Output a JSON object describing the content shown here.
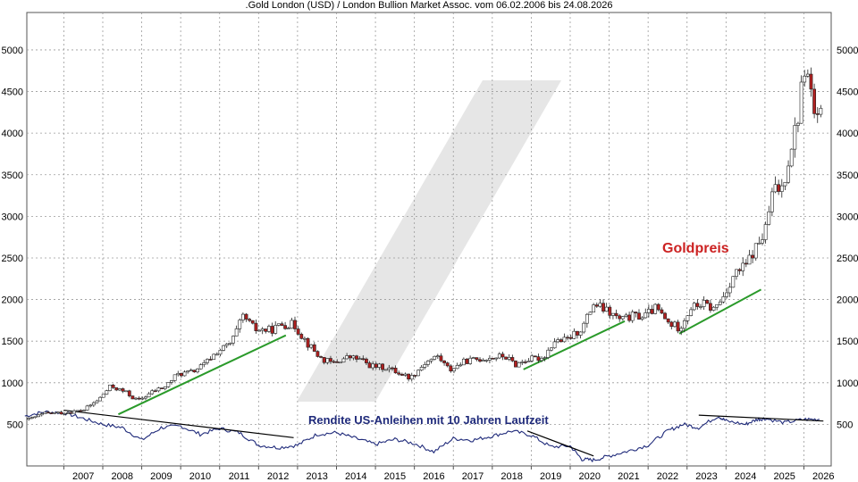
{
  "title": ".Gold London (USD) / London Bullion Market Assoc. vom 06.02.2006 bis 24.08.2026",
  "colors": {
    "background": "#ffffff",
    "grid": "#9a9a9a",
    "candle_up_fill": "#ffffff",
    "candle_down_fill": "#b02020",
    "candle_outline": "#222222",
    "trend_gold": "#2a9a2a",
    "trend_yield": "#000000",
    "yield_line": "#1f2a7a",
    "annotation_gold": "#cc2222",
    "annotation_yield": "#1f2a7a",
    "watermark": "#e6e6e6"
  },
  "chart_data": {
    "type": "candlestick",
    "title": ".Gold London (USD) / London Bullion Market Assoc. vom 06.02.2006 bis 24.08.2026",
    "x_tick_labels": [
      "2007",
      "2008",
      "2009",
      "2010",
      "2011",
      "2012",
      "2013",
      "2014",
      "2015",
      "2016",
      "2017",
      "2018",
      "2019",
      "2020",
      "2021",
      "2022",
      "2023",
      "2024",
      "2025",
      "2026"
    ],
    "y_tick_labels": [
      "5000",
      "4500",
      "4000",
      "3500",
      "3000",
      "2500",
      "2000",
      "1500",
      "1000",
      "500"
    ],
    "ylim": [
      0,
      5450
    ],
    "grid": true,
    "annotations": [
      "Goldpreis",
      "Rendite US-Anleihen mit 10 Jahren Laufzeit"
    ],
    "gold_price_points": [
      [
        2006.1,
        560
      ],
      [
        2006.5,
        630
      ],
      [
        2007.0,
        640
      ],
      [
        2007.5,
        670
      ],
      [
        2007.9,
        800
      ],
      [
        2008.2,
        960
      ],
      [
        2008.6,
        880
      ],
      [
        2008.9,
        780
      ],
      [
        2009.3,
        900
      ],
      [
        2009.6,
        950
      ],
      [
        2009.9,
        1100
      ],
      [
        2010.3,
        1130
      ],
      [
        2010.6,
        1220
      ],
      [
        2010.9,
        1360
      ],
      [
        2011.3,
        1480
      ],
      [
        2011.6,
        1800
      ],
      [
        2011.9,
        1640
      ],
      [
        2012.3,
        1630
      ],
      [
        2012.6,
        1700
      ],
      [
        2012.9,
        1700
      ],
      [
        2013.3,
        1450
      ],
      [
        2013.6,
        1290
      ],
      [
        2013.9,
        1230
      ],
      [
        2014.3,
        1310
      ],
      [
        2014.6,
        1280
      ],
      [
        2014.9,
        1200
      ],
      [
        2015.3,
        1180
      ],
      [
        2015.6,
        1120
      ],
      [
        2015.9,
        1060
      ],
      [
        2016.3,
        1250
      ],
      [
        2016.6,
        1320
      ],
      [
        2016.9,
        1150
      ],
      [
        2017.3,
        1260
      ],
      [
        2017.6,
        1280
      ],
      [
        2017.9,
        1300
      ],
      [
        2018.3,
        1320
      ],
      [
        2018.6,
        1220
      ],
      [
        2018.9,
        1280
      ],
      [
        2019.3,
        1300
      ],
      [
        2019.6,
        1500
      ],
      [
        2019.9,
        1510
      ],
      [
        2020.3,
        1650
      ],
      [
        2020.6,
        1950
      ],
      [
        2020.9,
        1870
      ],
      [
        2021.3,
        1750
      ],
      [
        2021.6,
        1800
      ],
      [
        2021.9,
        1800
      ],
      [
        2022.2,
        1900
      ],
      [
        2022.5,
        1720
      ],
      [
        2022.8,
        1660
      ],
      [
        2023.1,
        1900
      ],
      [
        2023.4,
        1950
      ],
      [
        2023.7,
        1880
      ],
      [
        2023.95,
        2050
      ],
      [
        2024.2,
        2300
      ],
      [
        2024.5,
        2400
      ],
      [
        2024.8,
        2650
      ],
      [
        2025.0,
        2800
      ],
      [
        2025.2,
        3300
      ],
      [
        2025.45,
        3350
      ],
      [
        2025.7,
        3900
      ],
      [
        2025.85,
        4200
      ],
      [
        2026.0,
        4800
      ],
      [
        2026.15,
        4600
      ],
      [
        2026.3,
        4100
      ],
      [
        2026.45,
        4200
      ]
    ],
    "yield_points_display_scale": [
      [
        2006.0,
        600
      ],
      [
        2006.5,
        650
      ],
      [
        2007.0,
        640
      ],
      [
        2007.5,
        570
      ],
      [
        2008.0,
        500
      ],
      [
        2008.5,
        460
      ],
      [
        2009.0,
        310
      ],
      [
        2009.5,
        460
      ],
      [
        2010.0,
        480
      ],
      [
        2010.5,
        380
      ],
      [
        2011.0,
        450
      ],
      [
        2011.5,
        400
      ],
      [
        2012.0,
        250
      ],
      [
        2012.5,
        220
      ],
      [
        2013.0,
        250
      ],
      [
        2013.5,
        380
      ],
      [
        2014.0,
        400
      ],
      [
        2014.5,
        330
      ],
      [
        2015.0,
        260
      ],
      [
        2015.5,
        320
      ],
      [
        2016.0,
        270
      ],
      [
        2016.5,
        170
      ],
      [
        2017.0,
        330
      ],
      [
        2017.5,
        310
      ],
      [
        2018.0,
        360
      ],
      [
        2018.5,
        420
      ],
      [
        2019.0,
        370
      ],
      [
        2019.5,
        230
      ],
      [
        2020.0,
        240
      ],
      [
        2020.3,
        80
      ],
      [
        2020.6,
        70
      ],
      [
        2021.0,
        120
      ],
      [
        2021.5,
        180
      ],
      [
        2022.0,
        250
      ],
      [
        2022.5,
        420
      ],
      [
        2022.9,
        500
      ],
      [
        2023.3,
        460
      ],
      [
        2023.8,
        600
      ],
      [
        2024.0,
        540
      ],
      [
        2024.5,
        500
      ],
      [
        2024.8,
        560
      ],
      [
        2025.0,
        570
      ],
      [
        2025.5,
        520
      ],
      [
        2026.0,
        560
      ],
      [
        2026.4,
        560
      ]
    ],
    "trendlines": [
      {
        "series": "gold",
        "from": [
          2008.4,
          620
        ],
        "to": [
          2012.7,
          1570
        ]
      },
      {
        "series": "gold",
        "from": [
          2018.8,
          1160
        ],
        "to": [
          2021.4,
          1740
        ]
      },
      {
        "series": "gold",
        "from": [
          2022.8,
          1590
        ],
        "to": [
          2024.9,
          2120
        ]
      },
      {
        "series": "yield",
        "from": [
          2007.0,
          670
        ],
        "to": [
          2012.9,
          340
        ]
      },
      {
        "series": "yield",
        "from": [
          2018.9,
          420
        ],
        "to": [
          2020.6,
          120
        ]
      },
      {
        "series": "yield",
        "from": [
          2023.3,
          610
        ],
        "to": [
          2026.5,
          540
        ]
      }
    ]
  }
}
